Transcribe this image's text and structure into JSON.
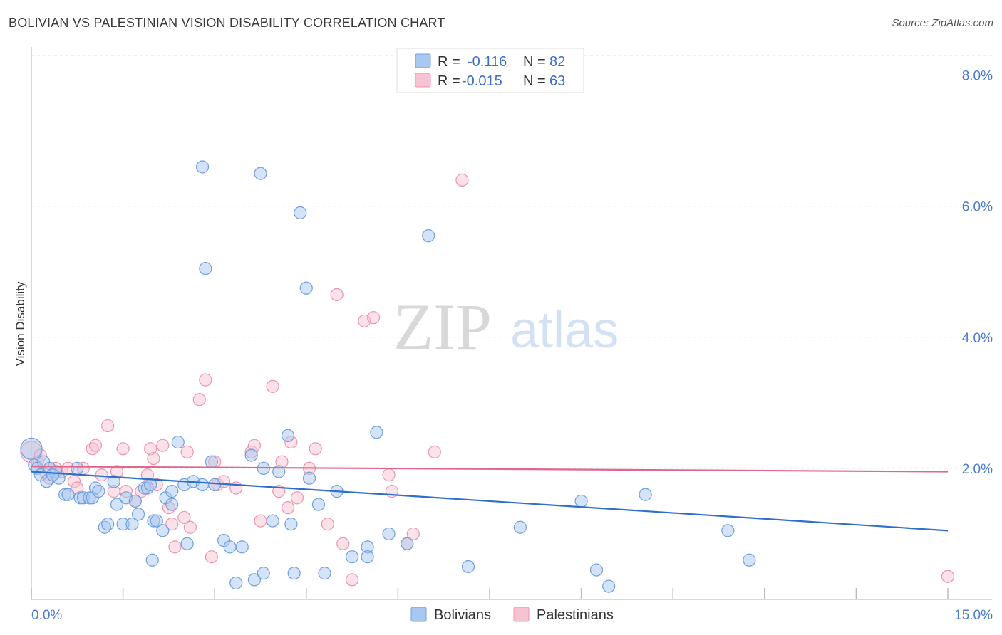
{
  "title": "BOLIVIAN VS PALESTINIAN VISION DISABILITY CORRELATION CHART",
  "source": "Source: ZipAtlas.com",
  "watermark": {
    "zip": "ZIP",
    "atlas": "atlas"
  },
  "legend_top": [
    {
      "r_label": "R =",
      "r_value": "-0.116",
      "n_label": "N =",
      "n_value": "82"
    },
    {
      "r_label": "R =",
      "r_value": "-0.015",
      "n_label": "N =",
      "n_value": "63"
    }
  ],
  "colors": {
    "bolivians_fill": "#a9c8f0",
    "bolivians_stroke": "#6f9fdc",
    "bolivians_line": "#2f6fcc",
    "palestinians_fill": "#f7c3d2",
    "palestinians_stroke": "#ec94ae",
    "palestinians_line": "#e0668d",
    "value_text": "#3c6fc9",
    "axis_label": "#4a7bd1"
  },
  "chart_data": {
    "type": "scatter",
    "title": "BOLIVIAN VS PALESTINIAN VISION DISABILITY CORRELATION CHART",
    "xlabel": "",
    "ylabel": "Vision Disability",
    "xlim": [
      0,
      15
    ],
    "ylim": [
      0,
      8.3
    ],
    "x_tick_labels": [
      "0.0%",
      "15.0%"
    ],
    "y_ticks": [
      2,
      4,
      6,
      8
    ],
    "y_tick_labels": [
      "2.0%",
      "4.0%",
      "6.0%",
      "8.0%"
    ],
    "grid": true,
    "legend_position": "bottom-center",
    "series": [
      {
        "name": "Bolivians",
        "r": -0.116,
        "n": 82,
        "trend": {
          "x": [
            0,
            15
          ],
          "y": [
            1.95,
            1.05
          ]
        },
        "points": [
          [
            0.0,
            2.3
          ],
          [
            0.05,
            2.05
          ],
          [
            0.1,
            2.0
          ],
          [
            0.15,
            1.9
          ],
          [
            0.2,
            2.1
          ],
          [
            0.25,
            1.8
          ],
          [
            0.3,
            2.0
          ],
          [
            0.4,
            1.95
          ],
          [
            0.45,
            1.85
          ],
          [
            0.55,
            1.6
          ],
          [
            0.6,
            1.6
          ],
          [
            0.75,
            2.0
          ],
          [
            0.8,
            1.55
          ],
          [
            0.85,
            1.55
          ],
          [
            0.95,
            1.55
          ],
          [
            1.0,
            1.55
          ],
          [
            1.05,
            1.7
          ],
          [
            1.1,
            1.65
          ],
          [
            1.2,
            1.1
          ],
          [
            1.25,
            1.15
          ],
          [
            1.35,
            1.8
          ],
          [
            1.4,
            1.45
          ],
          [
            1.5,
            1.15
          ],
          [
            1.55,
            1.55
          ],
          [
            1.65,
            1.15
          ],
          [
            1.7,
            1.5
          ],
          [
            1.75,
            1.3
          ],
          [
            1.85,
            1.7
          ],
          [
            1.9,
            1.7
          ],
          [
            1.95,
            1.75
          ],
          [
            1.98,
            0.6
          ],
          [
            2.0,
            1.2
          ],
          [
            2.05,
            1.2
          ],
          [
            2.15,
            1.05
          ],
          [
            2.2,
            1.55
          ],
          [
            2.3,
            1.65
          ],
          [
            2.3,
            1.45
          ],
          [
            2.4,
            2.4
          ],
          [
            2.5,
            1.75
          ],
          [
            2.55,
            0.85
          ],
          [
            2.65,
            1.8
          ],
          [
            2.8,
            1.75
          ],
          [
            2.85,
            5.05
          ],
          [
            2.8,
            6.6
          ],
          [
            2.95,
            2.1
          ],
          [
            3.0,
            1.75
          ],
          [
            3.15,
            0.9
          ],
          [
            3.25,
            0.8
          ],
          [
            3.35,
            0.25
          ],
          [
            3.45,
            0.8
          ],
          [
            3.6,
            2.2
          ],
          [
            3.65,
            0.3
          ],
          [
            3.75,
            6.5
          ],
          [
            3.8,
            2.0
          ],
          [
            3.8,
            0.4
          ],
          [
            3.95,
            1.2
          ],
          [
            4.05,
            1.95
          ],
          [
            4.2,
            2.5
          ],
          [
            4.25,
            1.15
          ],
          [
            4.3,
            0.4
          ],
          [
            4.4,
            5.9
          ],
          [
            4.5,
            4.75
          ],
          [
            4.55,
            1.85
          ],
          [
            4.7,
            1.45
          ],
          [
            4.8,
            0.4
          ],
          [
            5.0,
            1.65
          ],
          [
            5.25,
            0.65
          ],
          [
            5.5,
            0.8
          ],
          [
            5.5,
            0.65
          ],
          [
            5.65,
            2.55
          ],
          [
            5.85,
            1.0
          ],
          [
            6.15,
            0.85
          ],
          [
            6.5,
            5.55
          ],
          [
            7.15,
            0.5
          ],
          [
            8.0,
            1.1
          ],
          [
            9.0,
            1.5
          ],
          [
            9.25,
            0.45
          ],
          [
            9.45,
            0.2
          ],
          [
            10.05,
            1.6
          ],
          [
            11.4,
            1.05
          ],
          [
            11.75,
            0.6
          ],
          [
            0.35,
            1.9
          ]
        ]
      },
      {
        "name": "Palestinians",
        "r": -0.015,
        "n": 63,
        "trend": {
          "x": [
            0,
            15
          ],
          "y": [
            2.03,
            1.95
          ]
        },
        "points": [
          [
            0.0,
            2.25
          ],
          [
            0.1,
            2.1
          ],
          [
            0.15,
            2.2
          ],
          [
            0.25,
            1.9
          ],
          [
            0.3,
            1.85
          ],
          [
            0.4,
            2.0
          ],
          [
            0.5,
            1.95
          ],
          [
            0.6,
            2.0
          ],
          [
            0.7,
            1.8
          ],
          [
            0.75,
            1.7
          ],
          [
            0.85,
            2.0
          ],
          [
            1.0,
            2.3
          ],
          [
            1.05,
            2.35
          ],
          [
            1.15,
            1.9
          ],
          [
            1.25,
            2.65
          ],
          [
            1.35,
            1.65
          ],
          [
            1.4,
            1.95
          ],
          [
            1.5,
            2.3
          ],
          [
            1.55,
            1.65
          ],
          [
            1.7,
            1.5
          ],
          [
            1.8,
            1.65
          ],
          [
            1.9,
            1.9
          ],
          [
            1.95,
            2.3
          ],
          [
            2.0,
            2.15
          ],
          [
            2.05,
            1.75
          ],
          [
            2.15,
            2.35
          ],
          [
            2.25,
            1.4
          ],
          [
            2.3,
            1.15
          ],
          [
            2.35,
            0.8
          ],
          [
            2.5,
            1.25
          ],
          [
            2.55,
            2.25
          ],
          [
            2.6,
            1.1
          ],
          [
            2.75,
            3.05
          ],
          [
            2.85,
            3.35
          ],
          [
            2.95,
            0.65
          ],
          [
            3.0,
            2.1
          ],
          [
            3.05,
            1.75
          ],
          [
            3.15,
            1.8
          ],
          [
            3.35,
            1.7
          ],
          [
            3.6,
            2.25
          ],
          [
            3.65,
            2.35
          ],
          [
            3.75,
            1.2
          ],
          [
            3.95,
            3.25
          ],
          [
            4.05,
            1.65
          ],
          [
            4.1,
            2.1
          ],
          [
            4.2,
            1.4
          ],
          [
            4.25,
            2.4
          ],
          [
            4.35,
            1.55
          ],
          [
            4.55,
            2.0
          ],
          [
            4.65,
            2.3
          ],
          [
            4.85,
            1.15
          ],
          [
            5.0,
            4.65
          ],
          [
            5.1,
            0.85
          ],
          [
            5.25,
            0.3
          ],
          [
            5.45,
            4.25
          ],
          [
            5.6,
            4.3
          ],
          [
            5.85,
            1.9
          ],
          [
            5.9,
            1.65
          ],
          [
            6.15,
            0.85
          ],
          [
            6.25,
            1.0
          ],
          [
            6.6,
            2.25
          ],
          [
            7.05,
            6.4
          ],
          [
            15.0,
            0.35
          ]
        ]
      }
    ]
  },
  "bottom_legend": [
    {
      "label": "Bolivians"
    },
    {
      "label": "Palestinians"
    }
  ]
}
